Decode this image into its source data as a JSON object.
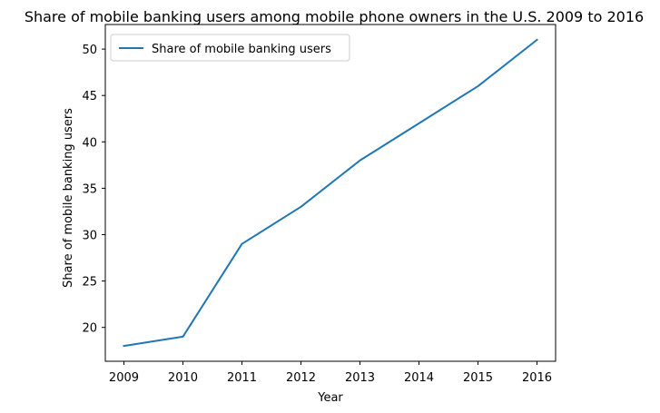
{
  "chart_data": {
    "type": "line",
    "title": "Share of mobile banking users among mobile phone owners in the U.S. 2009 to 2016",
    "xlabel": "Year",
    "ylabel": "Share of mobile banking users",
    "x": [
      2009,
      2010,
      2011,
      2012,
      2013,
      2014,
      2015,
      2016
    ],
    "series": [
      {
        "name": "Share of mobile banking users",
        "values": [
          18,
          19,
          29,
          33,
          38,
          42,
          46,
          51
        ],
        "color": "#1f77b4"
      }
    ],
    "xticks": [
      "2009",
      "2010",
      "2011",
      "2012",
      "2013",
      "2014",
      "2015",
      "2016"
    ],
    "yticks": [
      "20",
      "25",
      "30",
      "35",
      "40",
      "45",
      "50"
    ],
    "ylim": [
      16.35,
      52.65
    ],
    "grid": false,
    "legend": "top-left"
  }
}
